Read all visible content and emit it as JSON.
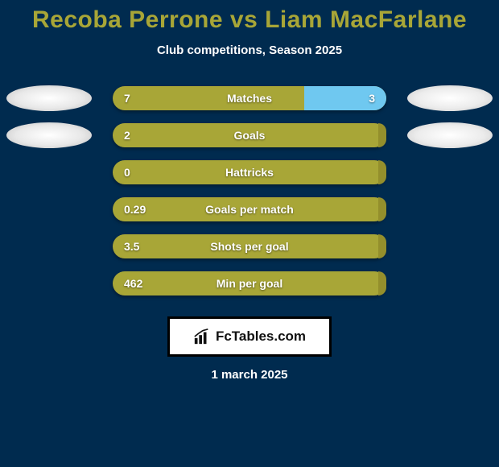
{
  "title": "Recoba Perrone vs Liam MacFarlane",
  "subtitle": "Club competitions, Season 2025",
  "date": "1 march 2025",
  "logo_text": "FcTables.com",
  "colors": {
    "background": "#002b4f",
    "title": "#a8a637",
    "text": "#ffffff",
    "bar_left": "#a8a637",
    "bar_right_highlight": "#6fc8f0",
    "bar_right_dim": "#948f2c"
  },
  "rows": [
    {
      "label": "Matches",
      "left_val": "7",
      "right_val": "3",
      "right_pct": 30,
      "right_color": "#6fc8f0",
      "show_right_val": true,
      "show_avatar_left": true,
      "show_avatar_right": true
    },
    {
      "label": "Goals",
      "left_val": "2",
      "right_val": "",
      "right_pct": 3,
      "right_color": "#948f2c",
      "show_right_val": false,
      "show_avatar_left": true,
      "show_avatar_right": true
    },
    {
      "label": "Hattricks",
      "left_val": "0",
      "right_val": "",
      "right_pct": 3,
      "right_color": "#948f2c",
      "show_right_val": false,
      "show_avatar_left": false,
      "show_avatar_right": false
    },
    {
      "label": "Goals per match",
      "left_val": "0.29",
      "right_val": "",
      "right_pct": 3,
      "right_color": "#948f2c",
      "show_right_val": false,
      "show_avatar_left": false,
      "show_avatar_right": false
    },
    {
      "label": "Shots per goal",
      "left_val": "3.5",
      "right_val": "",
      "right_pct": 3,
      "right_color": "#948f2c",
      "show_right_val": false,
      "show_avatar_left": false,
      "show_avatar_right": false
    },
    {
      "label": "Min per goal",
      "left_val": "462",
      "right_val": "",
      "right_pct": 3,
      "right_color": "#948f2c",
      "show_right_val": false,
      "show_avatar_left": false,
      "show_avatar_right": false
    }
  ]
}
